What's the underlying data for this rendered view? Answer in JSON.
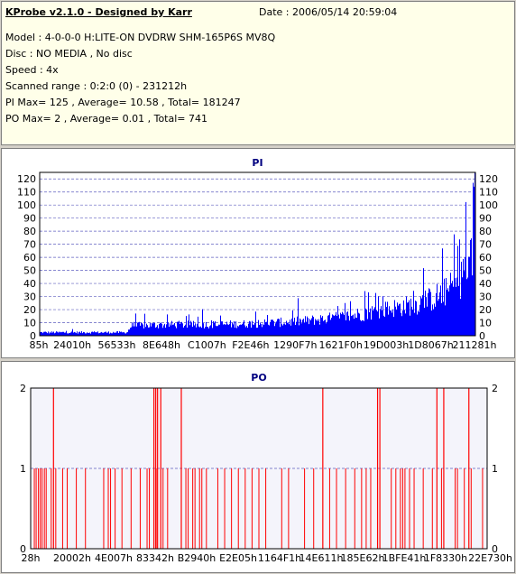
{
  "header": {
    "app_title": "KProbe v2.1.0 - Designed by Karr",
    "date": "Date : 2006/05/14 20:59:04",
    "model": "Model : 4-0-0-0 H:LITE-ON DVDRW SHM-165P6S MV8Q",
    "disc": "Disc : NO MEDIA , No disc",
    "speed": "Speed : 4x",
    "scanned_range": "Scanned range : 0:2:0 (0) - 231212h",
    "pi_summary": "PI Max= 125 , Average= 10.58 , Total= 181247",
    "po_summary": "PO Max= 2 , Average= 0.01 , Total= 741"
  },
  "colors": {
    "pi_bar": "#0000ff",
    "po_bar": "#ff0000",
    "grid": "#6060c0",
    "plot_bg_po": "#f4f4fb"
  },
  "chart_data": [
    {
      "type": "bar",
      "title": "PI",
      "ylim": [
        0,
        125
      ],
      "yticks": [
        0,
        10,
        20,
        30,
        40,
        50,
        60,
        70,
        80,
        90,
        100,
        110,
        120
      ],
      "xticks": [
        "85h",
        "24010h",
        "56533h",
        "8E648h",
        "C1007h",
        "F2E46h",
        "1290F7h",
        "1621F0h",
        "19D003h",
        "1D8067h",
        "211281h"
      ],
      "grid": true,
      "profile": {
        "x_fraction": [
          0,
          0.1,
          0.2,
          0.21,
          0.3,
          0.4,
          0.5,
          0.6,
          0.7,
          0.8,
          0.86,
          0.9,
          0.94,
          0.97,
          0.985,
          1.0
        ],
        "base_value": [
          3,
          3,
          3,
          9,
          10,
          10,
          11,
          13,
          17,
          24,
          28,
          33,
          41,
          52,
          68,
          80
        ],
        "max_value": 125
      }
    },
    {
      "type": "bar",
      "title": "PO",
      "ylim": [
        0,
        2
      ],
      "yticks": [
        0,
        1,
        2
      ],
      "xticks": [
        "28h",
        "20002h",
        "4E007h",
        "83342h",
        "B2940h",
        "E2E05h",
        "1164F1h",
        "14E611h",
        "185E62h",
        "1BFE41h",
        "1F8330h",
        "22E730h"
      ],
      "grid": true,
      "spikes_value_1_fraction": [
        0.008,
        0.012,
        0.017,
        0.021,
        0.025,
        0.03,
        0.034,
        0.045,
        0.055,
        0.07,
        0.08,
        0.1,
        0.12,
        0.16,
        0.17,
        0.175,
        0.185,
        0.2,
        0.22,
        0.24,
        0.255,
        0.26,
        0.275,
        0.29,
        0.3,
        0.34,
        0.345,
        0.355,
        0.36,
        0.37,
        0.375,
        0.385,
        0.41,
        0.425,
        0.44,
        0.455,
        0.47,
        0.485,
        0.5,
        0.515,
        0.55,
        0.565,
        0.6,
        0.62,
        0.655,
        0.67,
        0.69,
        0.71,
        0.725,
        0.735,
        0.745,
        0.79,
        0.8,
        0.81,
        0.815,
        0.82,
        0.83,
        0.84,
        0.86,
        0.88,
        0.9,
        0.93,
        0.935,
        0.95,
        0.965,
        0.99
      ],
      "spikes_value_2_fraction": [
        0.05,
        0.27,
        0.274,
        0.278,
        0.285,
        0.33,
        0.64,
        0.76,
        0.765,
        0.89,
        0.905,
        0.96
      ]
    }
  ]
}
